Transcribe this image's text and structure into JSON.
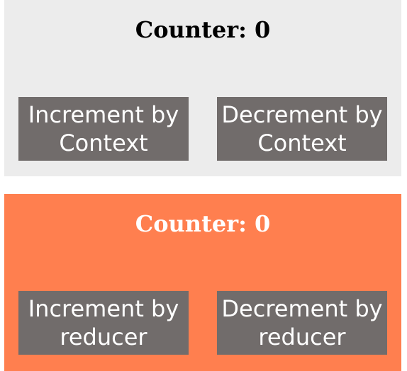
{
  "context_counter": {
    "label": "Counter: ",
    "value": "0",
    "increment_label": "Increment by Context",
    "decrement_label": "Decrement by Context"
  },
  "reducer_counter": {
    "label": "Counter: ",
    "value": "0",
    "increment_label": "Increment by reducer",
    "decrement_label": "Decrement by reducer"
  },
  "colors": {
    "context_panel_bg": "#ececec",
    "reducer_panel_bg": "#ff7f4f",
    "button_bg": "#716c6b",
    "button_text": "#ffffff"
  }
}
